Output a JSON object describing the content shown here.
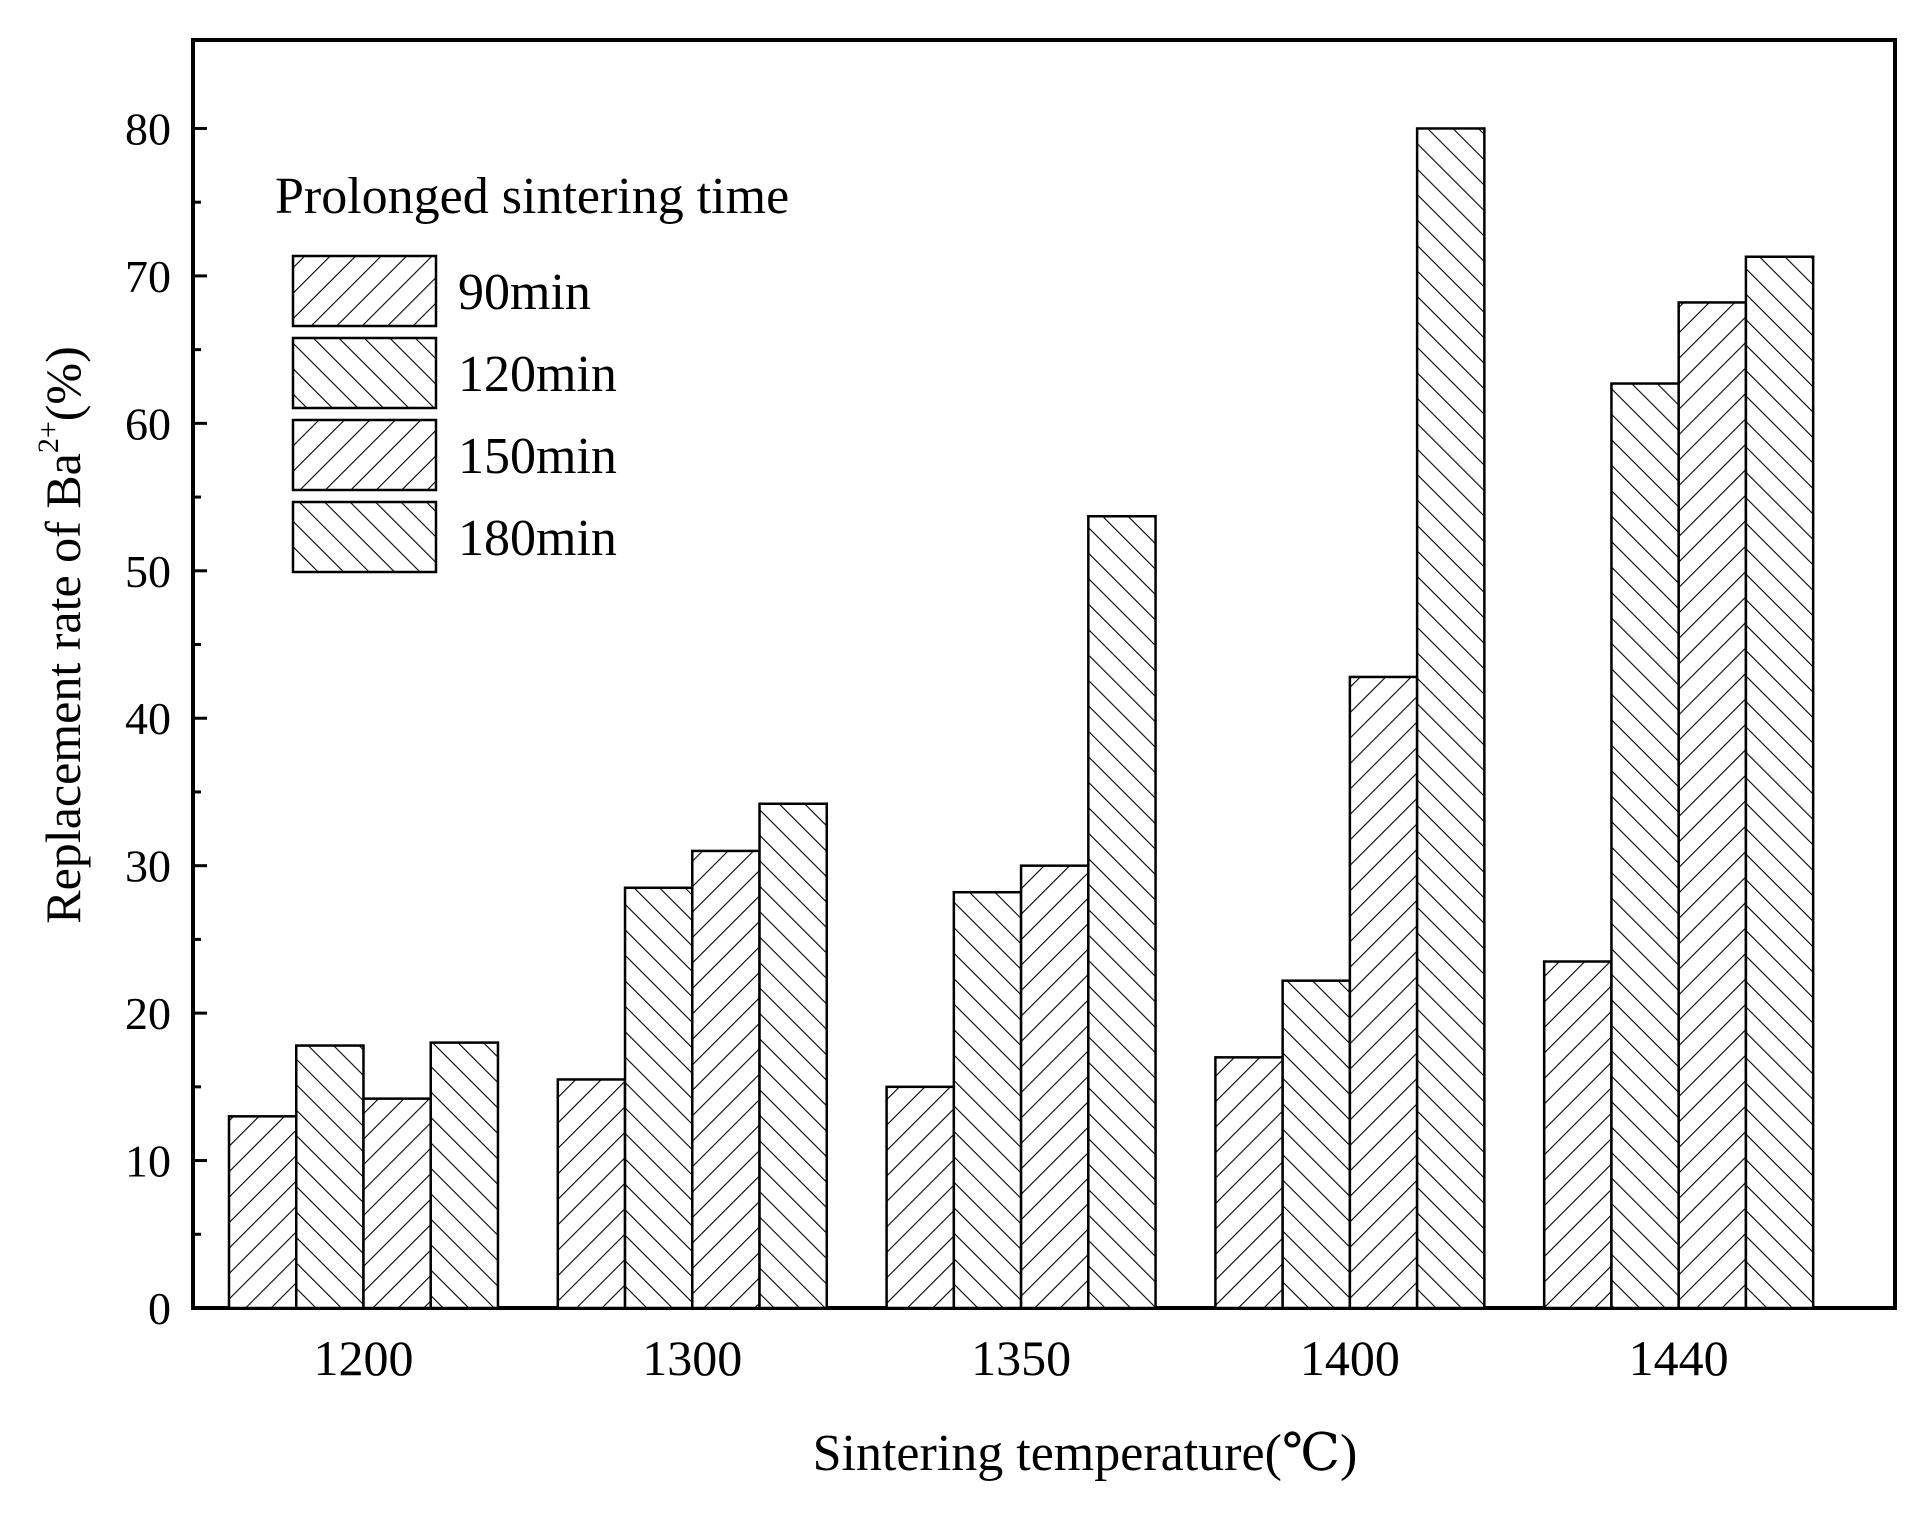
{
  "chart_data": {
    "type": "bar",
    "title": "",
    "xlabel": "Sintering temperature(℃)",
    "ylabel_main": "Replacement rate of Ba",
    "ylabel_sup": "2+",
    "ylabel_tail": "(%)",
    "ylim": [
      0,
      86
    ],
    "yticks": [
      0,
      10,
      20,
      30,
      40,
      50,
      60,
      70,
      80
    ],
    "grid": false,
    "legend_title": "Prolonged sintering time",
    "legend_position": "top-left",
    "categories": [
      "1200",
      "1300",
      "1350",
      "1400",
      "1440"
    ],
    "series": [
      {
        "name": "90min",
        "pattern": "fwd",
        "values": [
          13.0,
          15.5,
          15.0,
          17.0,
          23.5
        ]
      },
      {
        "name": "120min",
        "pattern": "back",
        "values": [
          17.8,
          28.5,
          28.2,
          22.2,
          62.7
        ]
      },
      {
        "name": "150min",
        "pattern": "fwd",
        "values": [
          14.2,
          31.0,
          30.0,
          42.8,
          68.2
        ]
      },
      {
        "name": "180min",
        "pattern": "back",
        "values": [
          18.0,
          34.2,
          53.7,
          80.0,
          71.3
        ]
      }
    ]
  }
}
